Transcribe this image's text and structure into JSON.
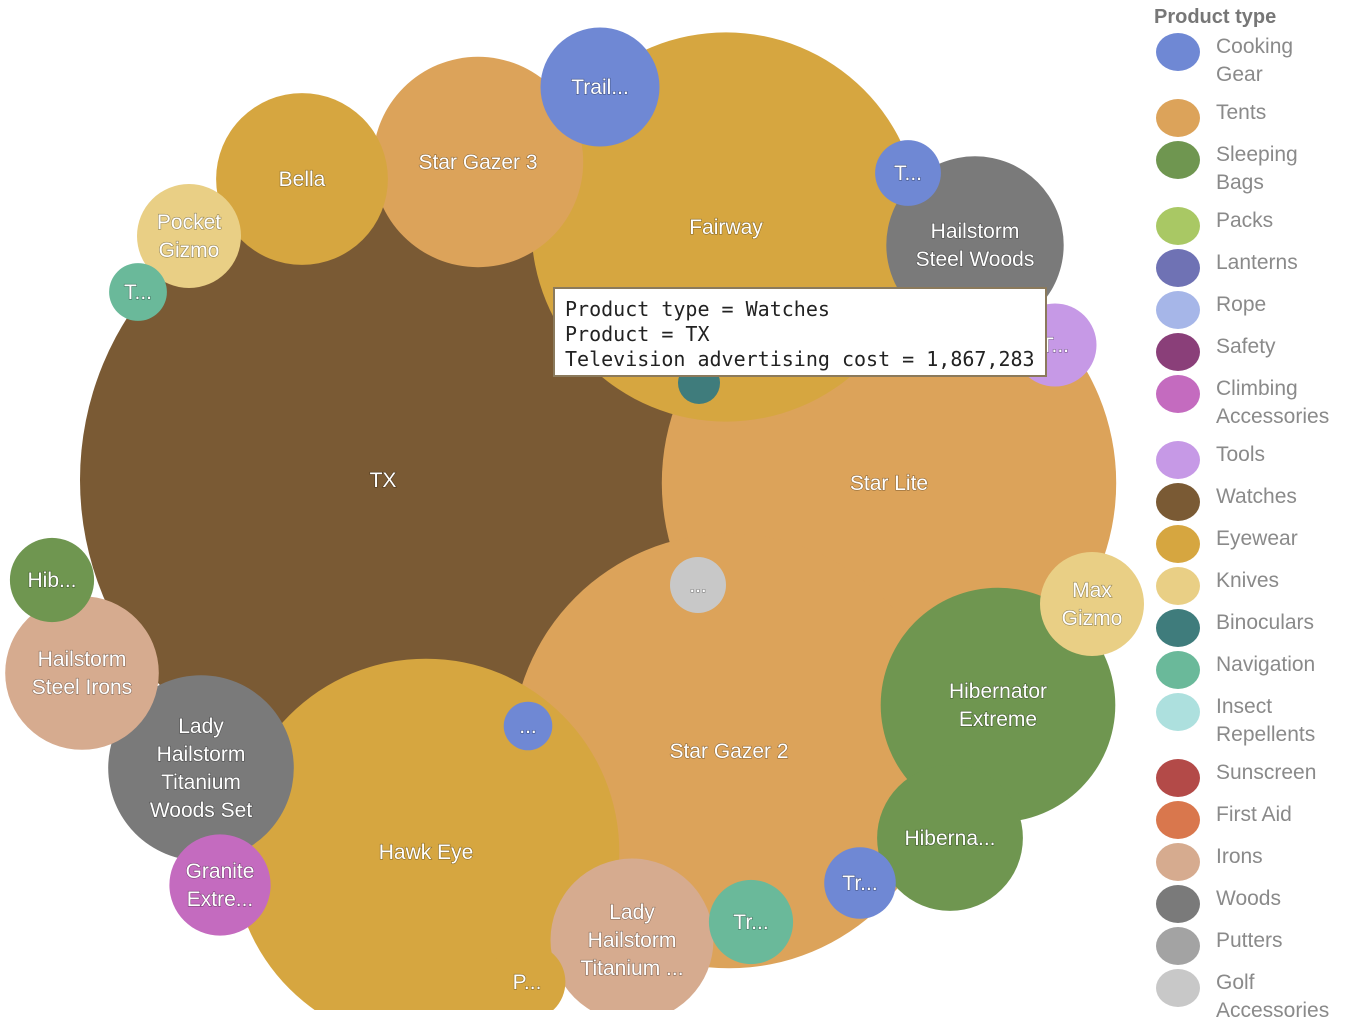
{
  "chart_data": {
    "type": "bubble",
    "legend": {
      "title": "Product type",
      "placement": "right",
      "items": [
        {
          "label": "Cooking\nGear",
          "color": "#6f88d4"
        },
        {
          "label": "Tents",
          "color": "#dca35a"
        },
        {
          "label": "Sleeping\nBags",
          "color": "#6f9650"
        },
        {
          "label": "Packs",
          "color": "#a9c864"
        },
        {
          "label": "Lanterns",
          "color": "#6f72b4"
        },
        {
          "label": "Rope",
          "color": "#a6b6e8"
        },
        {
          "label": "Safety",
          "color": "#8a3f79"
        },
        {
          "label": "Climbing\nAccessories",
          "color": "#c46bbf"
        },
        {
          "label": "Tools",
          "color": "#c699e6"
        },
        {
          "label": "Watches",
          "color": "#7a5a34"
        },
        {
          "label": "Eyewear",
          "color": "#d6a640"
        },
        {
          "label": "Knives",
          "color": "#e9cf85"
        },
        {
          "label": "Binoculars",
          "color": "#3f7c7c"
        },
        {
          "label": "Navigation",
          "color": "#6ab99a"
        },
        {
          "label": "Insect\nRepellents",
          "color": "#ade0de"
        },
        {
          "label": "Sunscreen",
          "color": "#b34a48"
        },
        {
          "label": "First Aid",
          "color": "#d9774d"
        },
        {
          "label": "Irons",
          "color": "#d6ab8f"
        },
        {
          "label": "Woods",
          "color": "#7a7a7a"
        },
        {
          "label": "Putters",
          "color": "#a3a3a3"
        },
        {
          "label": "Golf\nAccessories",
          "color": "#c8c8c8"
        }
      ]
    },
    "bubbles": [
      {
        "label": "TX",
        "type": "Watches",
        "value": 1867283
      },
      {
        "label": "Star Lite",
        "type": "Tents",
        "value": 1050000
      },
      {
        "label": "Star Gazer 2",
        "type": "Tents",
        "value": 960000
      },
      {
        "label": "Fairway",
        "type": "Eyewear",
        "value": 770000
      },
      {
        "label": "Hawk Eye",
        "type": "Eyewear",
        "value": 760000
      },
      {
        "label": "Hibernator Extreme",
        "type": "Sleeping Bags",
        "value": 280000
      },
      {
        "label": "Star Gazer 3",
        "type": "Tents",
        "value": 225000
      },
      {
        "label": "Lady Hailstorm Titanium Woods Set",
        "type": "Woods",
        "value": 175000
      },
      {
        "label": "Hailstorm Steel Woods Set",
        "type": "Woods",
        "value": 160000
      },
      {
        "label": "Bella",
        "type": "Eyewear",
        "value": 150000
      },
      {
        "label": "Lady Hailstorm Titanium Irons",
        "type": "Irons",
        "value": 135000
      },
      {
        "label": "Hailstorm Steel Irons",
        "type": "Irons",
        "value": 120000
      },
      {
        "label": "Hibernator",
        "type": "Sleeping Bags",
        "value": 108000
      },
      {
        "label": "Trail...",
        "type": "Cooking Gear",
        "value": 72000
      },
      {
        "label": "Pocket Gizmo",
        "type": "Knives",
        "value": 55000
      },
      {
        "label": "Max Gizmo",
        "type": "Knives",
        "value": 55000
      },
      {
        "label": "Granite Extreme",
        "type": "Climbing Accessories",
        "value": 52000
      },
      {
        "label": "T...",
        "type": "Tools",
        "value": 35000
      },
      {
        "label": "Hib...",
        "type": "Sleeping Bags",
        "value": 36000
      },
      {
        "label": "Tr...",
        "type": "Navigation",
        "value": 36000
      },
      {
        "label": "P...",
        "type": "Eyewear",
        "value": 30000
      },
      {
        "label": "Tr...",
        "type": "Cooking Gear",
        "value": 26000
      },
      {
        "label": "T...",
        "type": "Cooking Gear",
        "value": 22000
      },
      {
        "label": "T...",
        "type": "Navigation",
        "value": 17000
      },
      {
        "label": "...",
        "type": "Golf Accessories",
        "value": 16000
      },
      {
        "label": "...",
        "type": "Cooking Gear",
        "value": 12000
      },
      {
        "label": "...",
        "type": "Binoculars",
        "value": 9000
      }
    ],
    "tooltip": {
      "lines": [
        "Product type = Watches",
        "Product = TX",
        "Television advertising cost = 1,867,283"
      ]
    }
  }
}
